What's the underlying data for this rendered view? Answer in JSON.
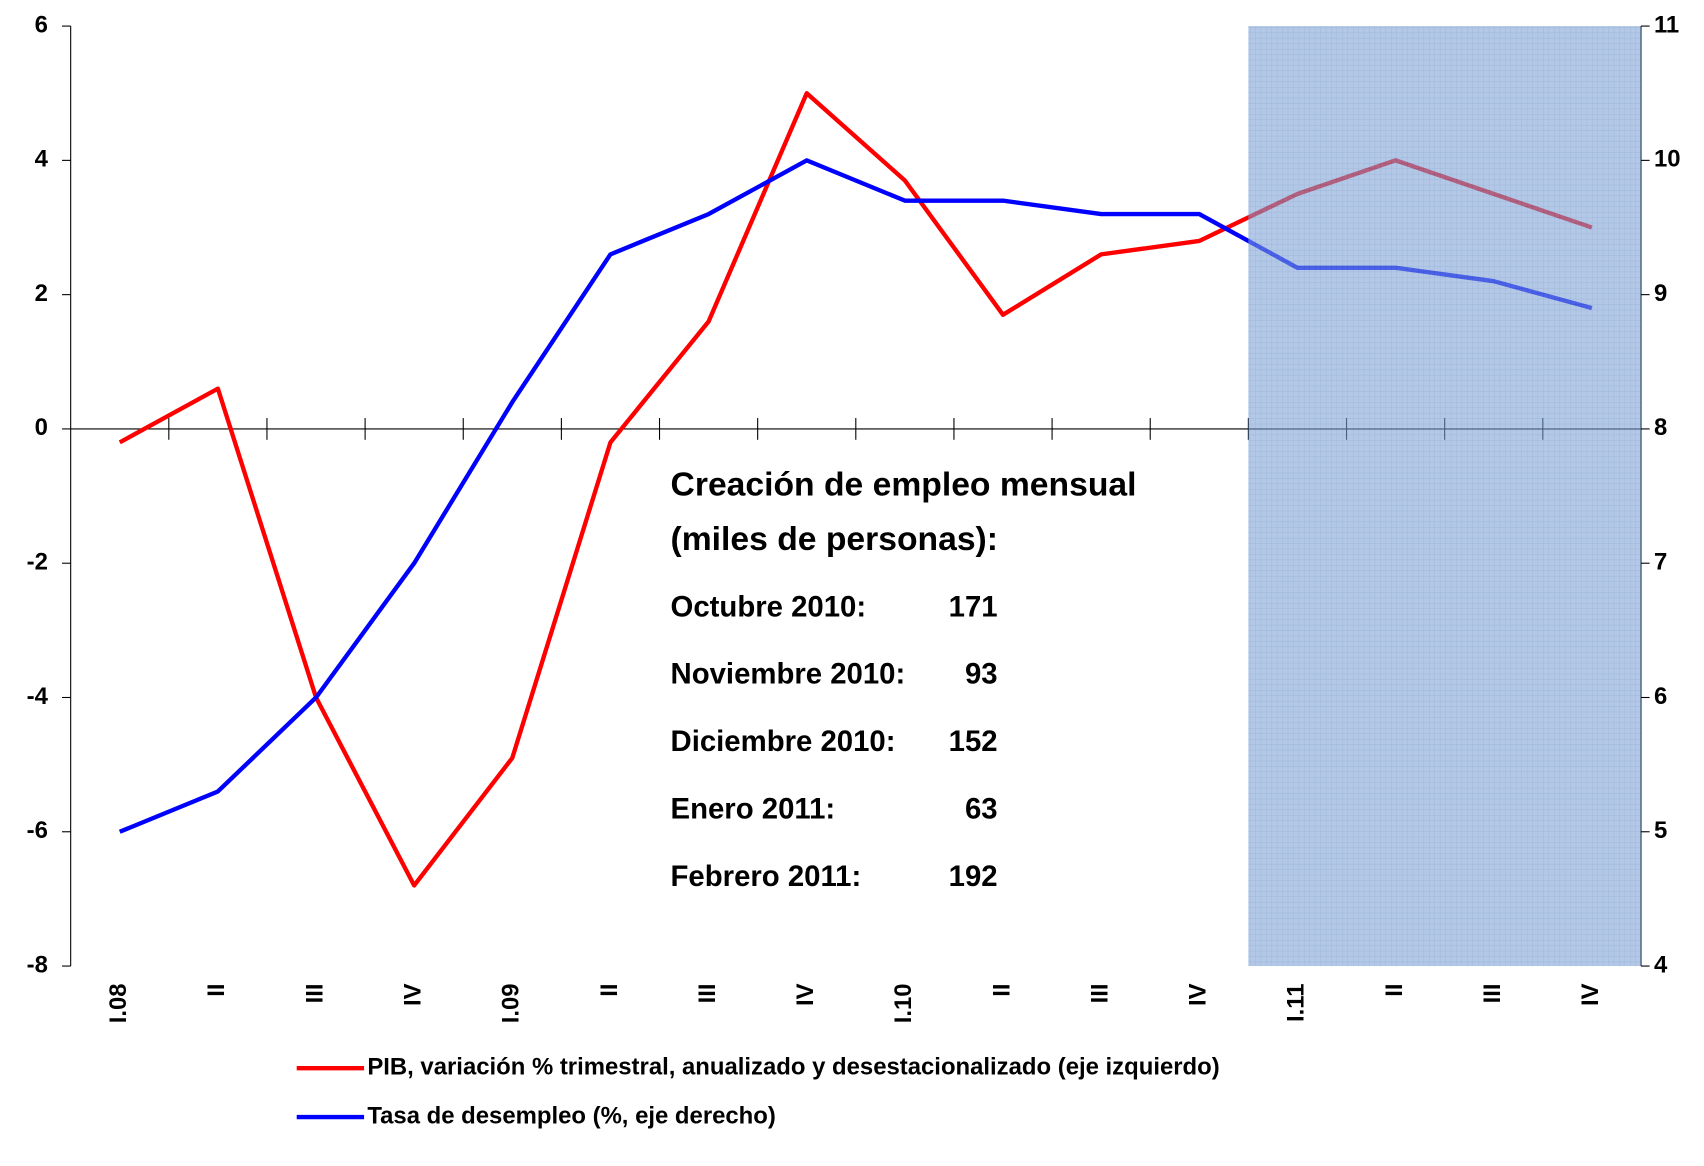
{
  "chart_data": {
    "type": "line",
    "categories": [
      "I.08",
      "II",
      "III",
      "IV",
      "I.09",
      "II",
      "III",
      "IV",
      "I.10",
      "II",
      "III",
      "IV",
      "I.11",
      "II",
      "III",
      "IV"
    ],
    "series": [
      {
        "name": "PIB, variación % trimestral, anualizado y desestacionalizado (eje izquierdo)",
        "color": "#ff0000",
        "values": [
          -0.2,
          0.6,
          -4.0,
          -6.8,
          -4.9,
          -0.2,
          1.6,
          5.0,
          3.7,
          1.7,
          2.6,
          2.8,
          3.5,
          4.0,
          3.5,
          3.0
        ]
      },
      {
        "name": "Tasa de desempleo (%, eje derecho)",
        "color": "#0000ff",
        "axis": "y2",
        "values": [
          5.0,
          5.3,
          6.0,
          7.0,
          8.2,
          9.3,
          9.6,
          10.0,
          9.7,
          9.7,
          9.6,
          9.6,
          9.2,
          9.2,
          9.1,
          8.9
        ]
      }
    ],
    "ylim": [
      -8,
      6
    ],
    "yticks": [
      -8,
      -6,
      -4,
      -2,
      0,
      2,
      4,
      6
    ],
    "y2lim": [
      4,
      11
    ],
    "y2ticks": [
      4,
      5,
      6,
      7,
      8,
      9,
      10,
      11
    ],
    "annotation": {
      "title": [
        "Creación de empleo mensual",
        "(miles de personas):"
      ],
      "rows": [
        {
          "label": "Octubre 2010:",
          "value": 171
        },
        {
          "label": "Noviembre 2010:",
          "value": 93
        },
        {
          "label": "Diciembre 2010:",
          "value": 152
        },
        {
          "label": "Enero 2011:",
          "value": 63
        },
        {
          "label": "Febrero 2011:",
          "value": 192
        }
      ]
    }
  }
}
